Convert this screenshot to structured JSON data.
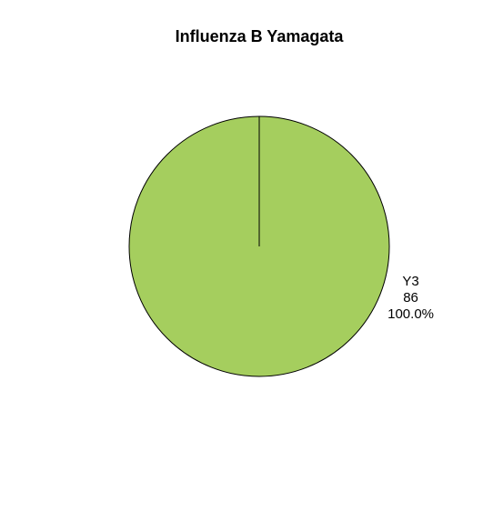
{
  "chart_data": {
    "type": "pie",
    "title": "Influenza B Yamagata",
    "slices": [
      {
        "label": "Y3",
        "count": "86",
        "percent_label": "100.0%",
        "value": 86,
        "color": "#a5ce5e"
      }
    ],
    "outline_color": "#000000"
  }
}
